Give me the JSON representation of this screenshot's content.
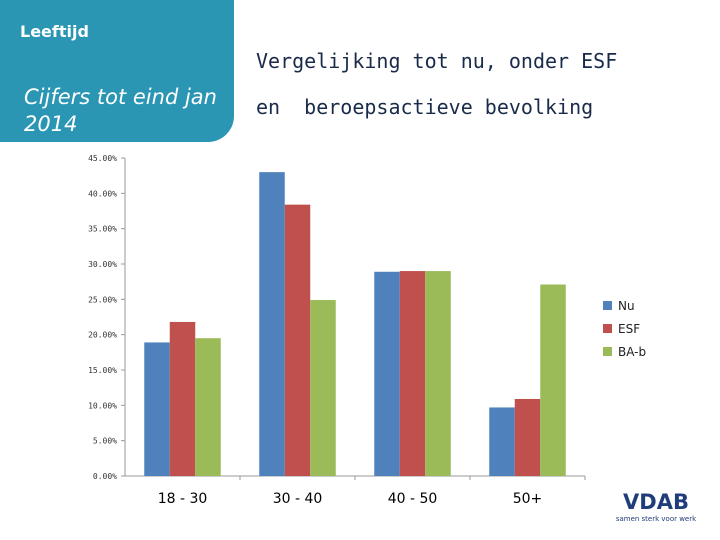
{
  "slide": {
    "section_label": "Leeftijd",
    "subtitle": "Cijfers tot eind jan 2014",
    "title_line1": "Vergelijking tot nu, onder ESF",
    "title_line2": "en  beroepsactieve bevolking"
  },
  "logo": {
    "name": "VDAB",
    "tagline": "samen sterk voor werk"
  },
  "colors": {
    "panel": "#2a96b4",
    "nu": "#4f81bd",
    "esf": "#c0504d",
    "ba": "#9bbb59"
  },
  "chart_data": {
    "type": "bar",
    "categories": [
      "18 - 30",
      "30 - 40",
      "40 - 50",
      "50+"
    ],
    "series": [
      {
        "name": "Nu",
        "values": [
          18.9,
          43.0,
          28.9,
          9.7
        ]
      },
      {
        "name": "ESF",
        "values": [
          21.8,
          38.4,
          29.0,
          10.9
        ]
      },
      {
        "name": "BA-b",
        "values": [
          19.5,
          24.9,
          29.0,
          27.1
        ]
      }
    ],
    "ylim": [
      0,
      45
    ],
    "yticks": [
      "0.00%",
      "5.00%",
      "10.00%",
      "15.00%",
      "20.00%",
      "25.00%",
      "30.00%",
      "35.00%",
      "40.00%",
      "45.00%"
    ],
    "ytick_values": [
      0,
      5,
      10,
      15,
      20,
      25,
      30,
      35,
      40,
      45
    ],
    "title": "",
    "xlabel": "",
    "ylabel": "",
    "legend_position": "right",
    "grid": false
  }
}
